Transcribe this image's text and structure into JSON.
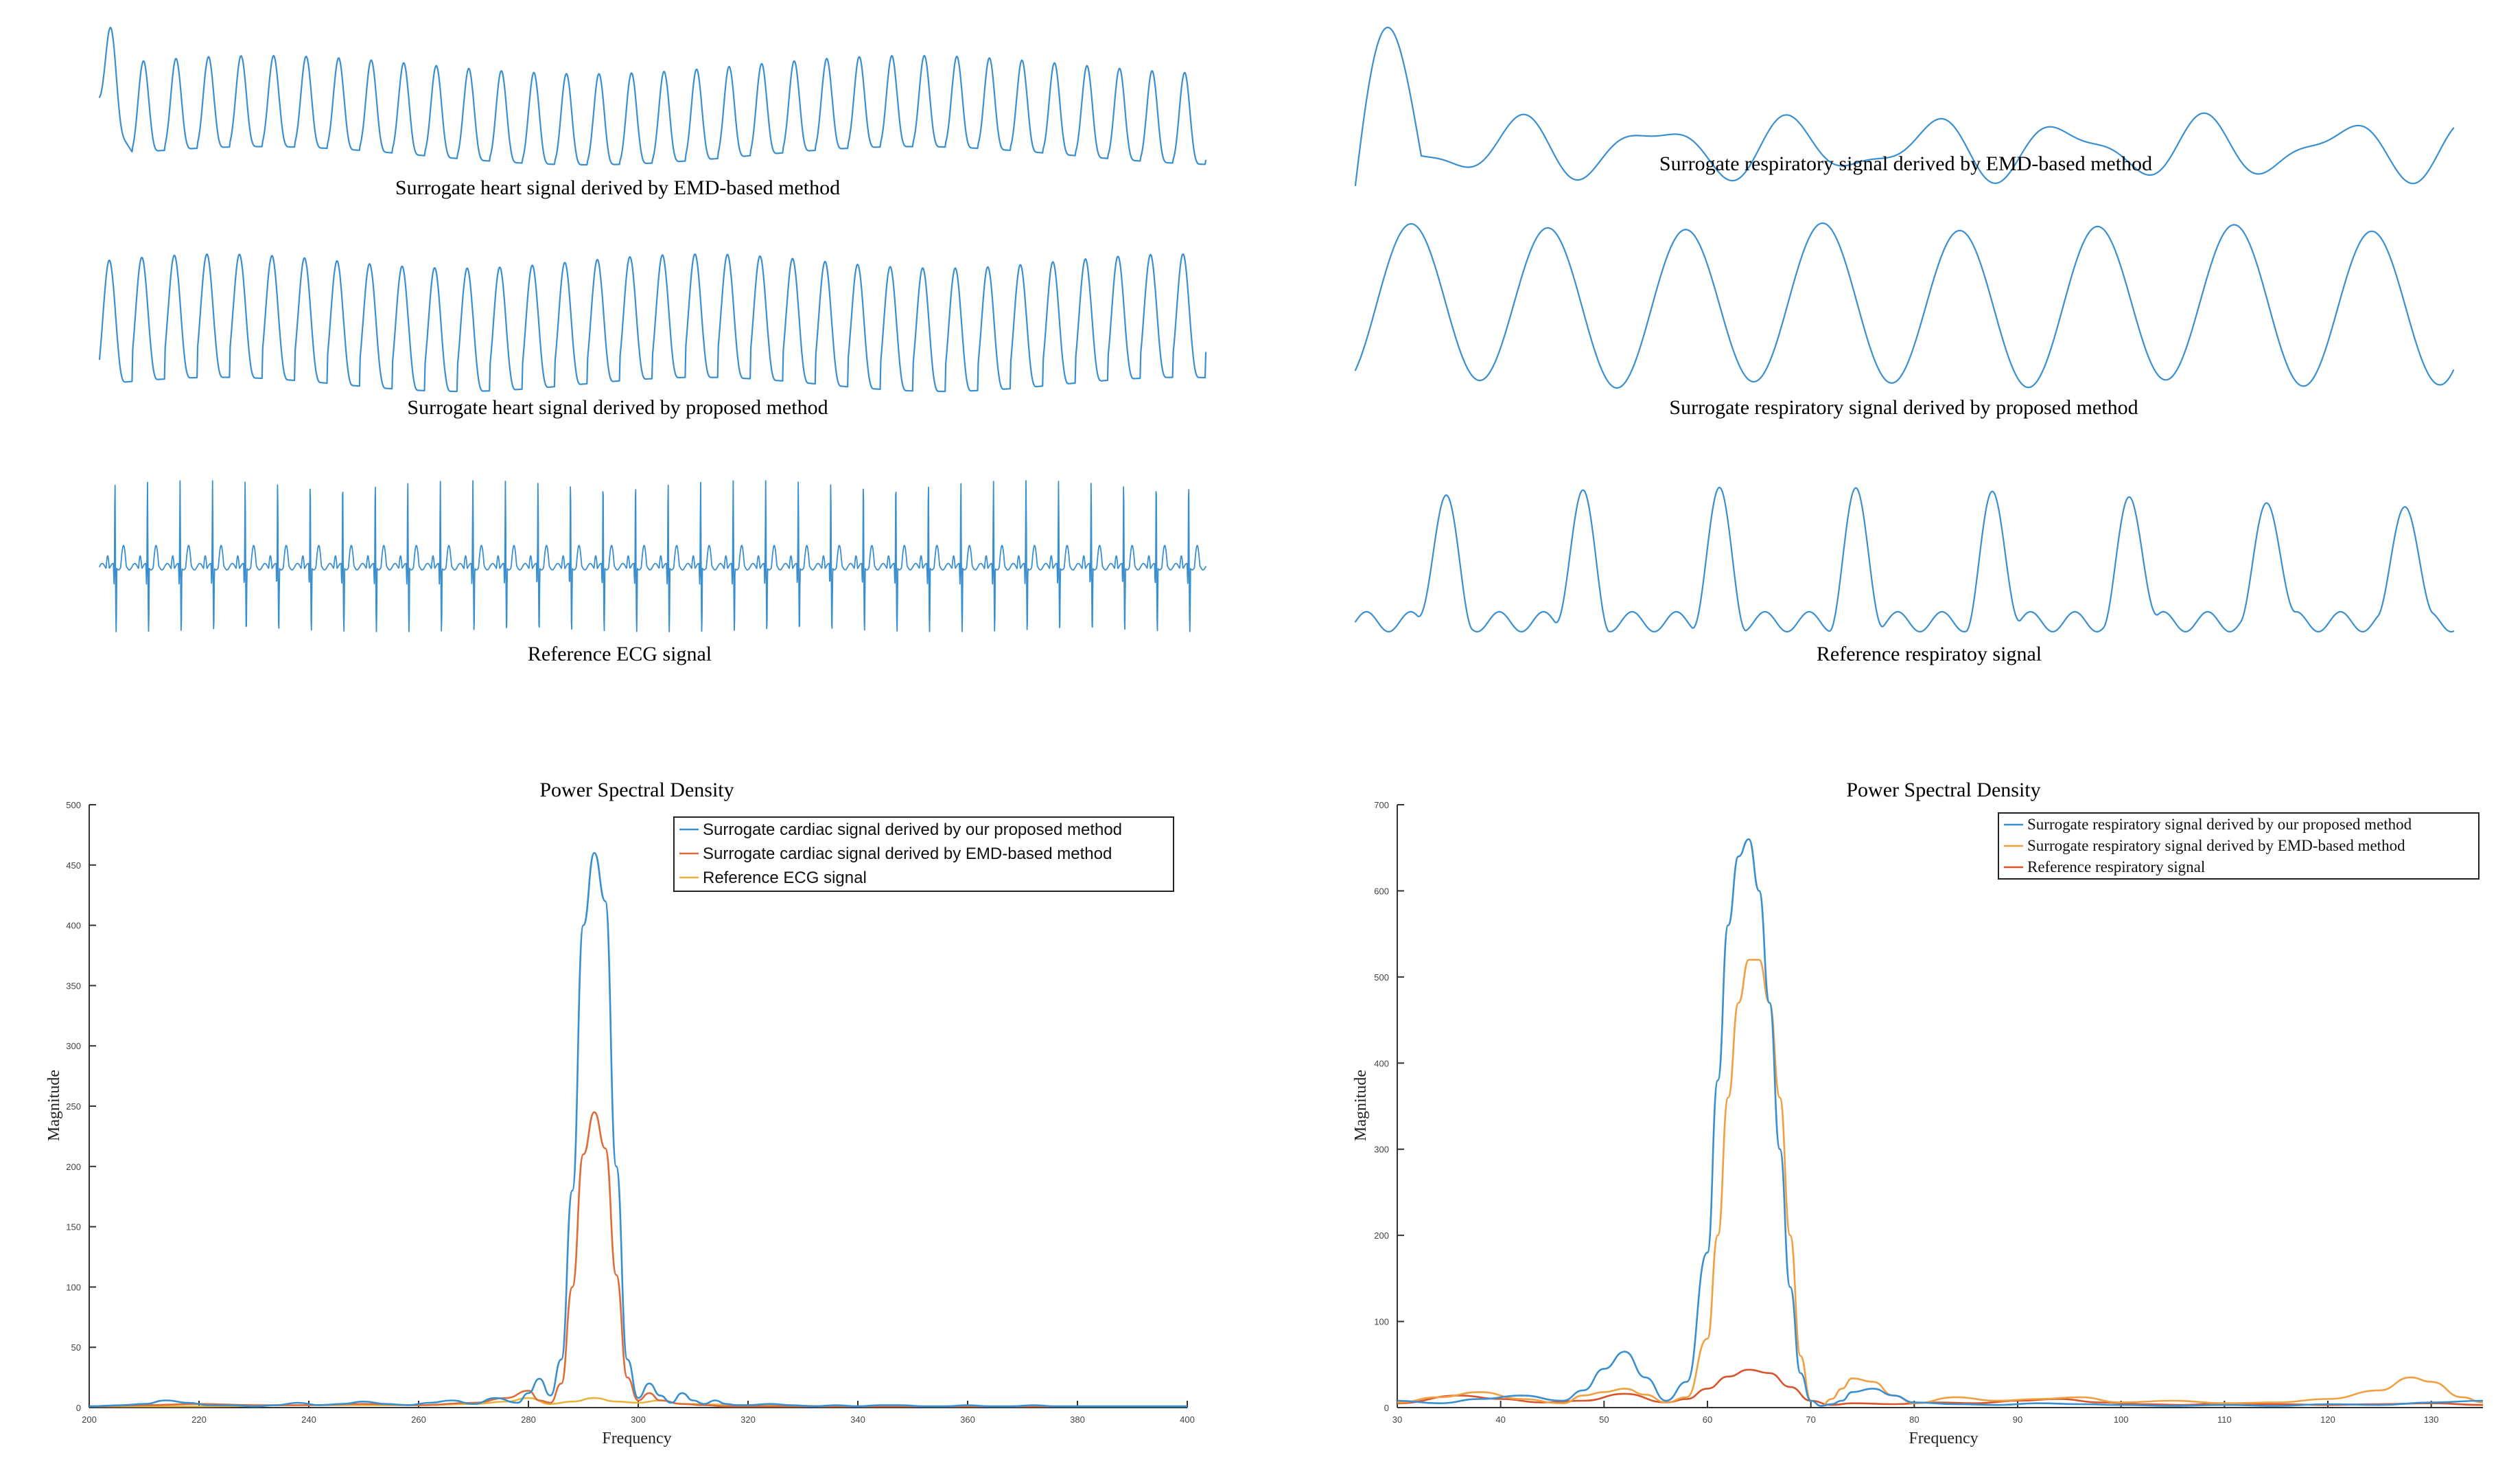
{
  "chart_data": [
    {
      "type": "line",
      "title": "",
      "caption": "Surrogate heart signal derived by EMD-based method",
      "signal": {
        "kind": "heart-emd",
        "cycles": 34
      },
      "color": "#3a8fd0"
    },
    {
      "type": "line",
      "title": "",
      "caption": "Surrogate heart signal derived by proposed method",
      "signal": {
        "kind": "heart-proposed",
        "cycles": 34
      },
      "color": "#3a8fd0"
    },
    {
      "type": "line",
      "title": "",
      "caption": "Reference ECG signal",
      "signal": {
        "kind": "ecg",
        "cycles": 34
      },
      "color": "#3a8fd0"
    },
    {
      "type": "line",
      "title": "",
      "caption": "Surrogate respiratory signal derived by EMD-based method",
      "signal": {
        "kind": "resp-emd",
        "cycles": 8
      },
      "color": "#3a8fd0"
    },
    {
      "type": "line",
      "title": "",
      "caption": "Surrogate respiratory signal derived by proposed method",
      "signal": {
        "kind": "resp-proposed",
        "cycles": 8
      },
      "color": "#3a8fd0"
    },
    {
      "type": "line",
      "title": "",
      "caption": "Reference respiratoy signal",
      "signal": {
        "kind": "resp-ref",
        "cycles": 8
      },
      "color": "#3a8fd0"
    },
    {
      "type": "line",
      "title": "Power Spectral Density",
      "xlabel": "Frequency",
      "ylabel": "Magnitude",
      "xlim": [
        200,
        400
      ],
      "ylim": [
        0,
        500
      ],
      "xticks": [
        200,
        220,
        240,
        260,
        280,
        300,
        320,
        340,
        360,
        380,
        400
      ],
      "yticks": [
        0,
        50,
        100,
        150,
        200,
        250,
        300,
        350,
        400,
        450,
        500
      ],
      "legend_position": "top-right",
      "legend_font": "sans",
      "series": [
        {
          "name": "Surrogate cardiac signal derived by our proposed method",
          "color": "#3a8fd0",
          "x": [
            200,
            206,
            210,
            214,
            218,
            222,
            226,
            230,
            234,
            238,
            242,
            246,
            250,
            254,
            258,
            262,
            266,
            270,
            274,
            278,
            280,
            282,
            284,
            286,
            288,
            290,
            292,
            294,
            296,
            298,
            300,
            302,
            304,
            306,
            308,
            310,
            312,
            314,
            316,
            318,
            320,
            324,
            328,
            332,
            336,
            340,
            344,
            348,
            352,
            356,
            360,
            364,
            368,
            372,
            376,
            380,
            384,
            388,
            392,
            396,
            400
          ],
          "y": [
            1,
            2,
            3,
            6,
            4,
            2,
            2,
            1,
            2,
            4,
            2,
            3,
            5,
            3,
            2,
            4,
            6,
            3,
            8,
            4,
            12,
            24,
            10,
            40,
            180,
            400,
            460,
            420,
            200,
            40,
            8,
            20,
            10,
            4,
            12,
            6,
            3,
            6,
            3,
            2,
            2,
            3,
            2,
            1,
            2,
            1,
            2,
            2,
            1,
            1,
            2,
            1,
            1,
            2,
            1,
            1,
            1,
            1,
            1,
            1,
            1
          ]
        },
        {
          "name": "Surrogate cardiac signal derived by EMD-based method",
          "color": "#e06b3a",
          "x": [
            200,
            210,
            220,
            230,
            240,
            250,
            260,
            270,
            276,
            280,
            282,
            284,
            286,
            288,
            290,
            292,
            294,
            296,
            298,
            300,
            302,
            304,
            308,
            312,
            316,
            320,
            330,
            340,
            350,
            360,
            370,
            380,
            390,
            400
          ],
          "y": [
            1,
            2,
            3,
            2,
            2,
            3,
            2,
            4,
            8,
            14,
            6,
            4,
            20,
            100,
            210,
            245,
            215,
            110,
            25,
            6,
            12,
            6,
            3,
            2,
            1,
            1,
            1,
            1,
            1,
            1,
            1,
            1,
            1,
            1
          ]
        },
        {
          "name": "Reference ECG signal",
          "color": "#e8b53a",
          "x": [
            200,
            220,
            240,
            260,
            270,
            276,
            280,
            284,
            288,
            292,
            296,
            300,
            304,
            308,
            320,
            340,
            360,
            380,
            400
          ],
          "y": [
            1,
            1,
            2,
            2,
            3,
            5,
            8,
            3,
            5,
            8,
            5,
            4,
            6,
            3,
            2,
            1,
            1,
            1,
            1
          ]
        }
      ]
    },
    {
      "type": "line",
      "title": "Power Spectral Density",
      "xlabel": "Frequency",
      "ylabel": "Magnitude",
      "xlim": [
        30,
        135
      ],
      "ylim": [
        0,
        700
      ],
      "xticks": [
        30,
        40,
        50,
        60,
        70,
        80,
        90,
        100,
        110,
        120,
        130
      ],
      "yticks": [
        0,
        100,
        200,
        300,
        400,
        500,
        600,
        700
      ],
      "legend_position": "top-right",
      "legend_font": "serif",
      "series": [
        {
          "name": "Surrogate respiratory signal derived by our proposed method",
          "color": "#3a8fd0",
          "x": [
            30,
            34,
            38,
            42,
            46,
            48,
            50,
            52,
            54,
            56,
            58,
            60,
            61,
            62,
            63,
            64,
            65,
            66,
            67,
            68,
            69,
            70,
            71,
            72,
            73,
            74,
            76,
            78,
            80,
            84,
            88,
            92,
            96,
            100,
            105,
            110,
            115,
            120,
            125,
            130,
            135
          ],
          "y": [
            8,
            5,
            10,
            14,
            8,
            20,
            45,
            65,
            35,
            8,
            30,
            180,
            380,
            560,
            640,
            660,
            600,
            470,
            300,
            140,
            40,
            8,
            2,
            4,
            8,
            18,
            22,
            14,
            6,
            4,
            3,
            5,
            4,
            3,
            2,
            3,
            2,
            4,
            3,
            6,
            8
          ]
        },
        {
          "name": "Surrogate respiratory signal derived by EMD-based method",
          "color": "#f0a040",
          "x": [
            30,
            34,
            38,
            42,
            46,
            48,
            50,
            52,
            54,
            56,
            58,
            60,
            61,
            62,
            63,
            64,
            65,
            66,
            67,
            68,
            69,
            70,
            71,
            72,
            73,
            74,
            76,
            78,
            80,
            84,
            88,
            92,
            96,
            100,
            105,
            110,
            115,
            120,
            125,
            128,
            130,
            133,
            135
          ],
          "y": [
            6,
            12,
            18,
            10,
            5,
            14,
            18,
            22,
            15,
            6,
            12,
            80,
            200,
            360,
            470,
            520,
            520,
            470,
            360,
            200,
            60,
            8,
            2,
            10,
            22,
            34,
            30,
            14,
            5,
            12,
            8,
            10,
            12,
            6,
            8,
            5,
            6,
            10,
            20,
            35,
            30,
            12,
            6
          ]
        },
        {
          "name": "Reference respiratory signal",
          "color": "#d9542a",
          "x": [
            30,
            36,
            40,
            44,
            48,
            52,
            56,
            58,
            60,
            62,
            64,
            66,
            68,
            70,
            72,
            74,
            78,
            82,
            86,
            90,
            94,
            98,
            102,
            106,
            110,
            115,
            120,
            125,
            130,
            135
          ],
          "y": [
            5,
            14,
            10,
            6,
            8,
            16,
            6,
            10,
            22,
            36,
            44,
            40,
            24,
            8,
            3,
            5,
            4,
            6,
            5,
            8,
            10,
            6,
            4,
            3,
            5,
            4,
            3,
            4,
            5,
            3
          ]
        }
      ]
    }
  ]
}
